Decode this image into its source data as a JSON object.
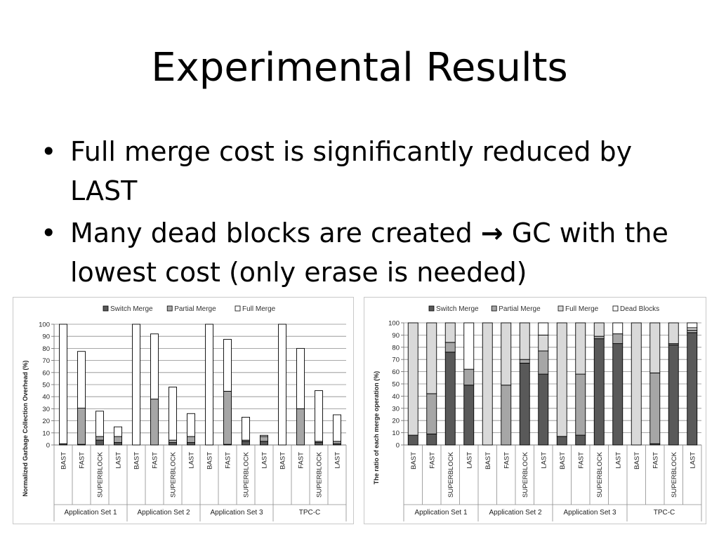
{
  "slide": {
    "title": "Experimental Results",
    "bullets": [
      {
        "text": "Full merge cost is significantly reduced by LAST"
      },
      {
        "before": "Many dead blocks are created ",
        "arrow": "→",
        "after": " GC with the lowest cost (only erase is needed)"
      }
    ]
  },
  "chart_data": [
    {
      "type": "bar",
      "stacked": true,
      "ylabel": "Normalized Garbage Collection Overhead (%)",
      "ylim": [
        0,
        100
      ],
      "yticks": [
        0,
        10,
        20,
        30,
        40,
        50,
        60,
        70,
        80,
        90,
        100
      ],
      "legend_position": "top",
      "grid": true,
      "groups": [
        "Application Set 1",
        "Application Set 2",
        "Application Set 3",
        "TPC-C"
      ],
      "categories": [
        "BAST",
        "FAST",
        "SUPERBLOCK",
        "LAST"
      ],
      "series": [
        {
          "name": "Switch Merge",
          "color": "#595959",
          "values": [
            [
              1,
              0.5,
              4,
              2
            ],
            [
              0,
              0,
              2,
              2
            ],
            [
              0,
              0.5,
              3,
              3
            ],
            [
              0,
              0,
              2,
              1
            ]
          ]
        },
        {
          "name": "Partial Merge",
          "color": "#a6a6a6",
          "values": [
            [
              0,
              30,
              3,
              5
            ],
            [
              0,
              38,
              2,
              5
            ],
            [
              0,
              44,
              1,
              4
            ],
            [
              0,
              30,
              1,
              2
            ]
          ]
        },
        {
          "name": "Full Merge",
          "color": "#ffffff",
          "values": [
            [
              99,
              47,
              21,
              8
            ],
            [
              100,
              54,
              44,
              19
            ],
            [
              100,
              43,
              19,
              1
            ],
            [
              100,
              50,
              42,
              22
            ]
          ]
        }
      ]
    },
    {
      "type": "bar",
      "stacked": true,
      "ylabel": "The ratio of each merge operation (%)",
      "ylim": [
        0,
        100
      ],
      "yticks": [
        0,
        10,
        20,
        30,
        40,
        50,
        60,
        70,
        80,
        90,
        100
      ],
      "legend_position": "top",
      "grid": true,
      "groups": [
        "Application Set 1",
        "Application Set 2",
        "Application Set 3",
        "TPC-C"
      ],
      "categories": [
        "BAST",
        "FAST",
        "SUPERBLOCK",
        "LAST"
      ],
      "series": [
        {
          "name": "Switch Merge",
          "color": "#595959",
          "values": [
            [
              8,
              9,
              76,
              49
            ],
            [
              0,
              0,
              67,
              58
            ],
            [
              7,
              8,
              87,
              83
            ],
            [
              0,
              1,
              82,
              92
            ]
          ]
        },
        {
          "name": "Partial Merge",
          "color": "#a6a6a6",
          "values": [
            [
              0,
              33,
              8,
              13
            ],
            [
              0,
              49,
              3,
              19
            ],
            [
              0,
              50,
              2,
              8
            ],
            [
              0,
              58,
              1,
              2
            ]
          ]
        },
        {
          "name": "Full Merge",
          "color": "#d9d9d9",
          "values": [
            [
              92,
              58,
              16,
              0
            ],
            [
              100,
              51,
              30,
              13
            ],
            [
              93,
              42,
              11,
              0
            ],
            [
              100,
              41,
              17,
              2
            ]
          ]
        },
        {
          "name": "Dead Blocks",
          "color": "#ffffff",
          "values": [
            [
              0,
              0,
              0,
              38
            ],
            [
              0,
              0,
              0,
              10
            ],
            [
              0,
              0,
              0,
              9
            ],
            [
              0,
              0,
              0,
              4
            ]
          ]
        }
      ]
    }
  ]
}
